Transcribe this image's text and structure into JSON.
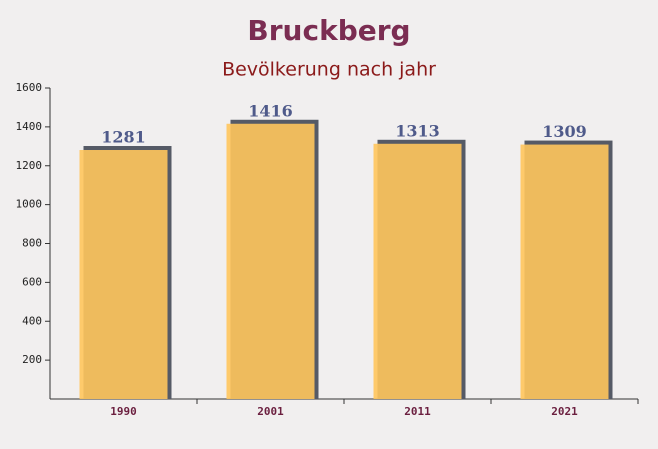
{
  "chart_data": {
    "type": "bar",
    "title": "Bruckberg",
    "subtitle": "Bevölkerung nach jahr",
    "categories": [
      "1990",
      "2001",
      "2011",
      "2021"
    ],
    "values": [
      1281,
      1416,
      1313,
      1309
    ],
    "color": "#ffc55c",
    "ylim": [
      0,
      1600
    ],
    "yticks": [
      200,
      400,
      600,
      800,
      1000,
      1200,
      1400,
      1600
    ]
  }
}
